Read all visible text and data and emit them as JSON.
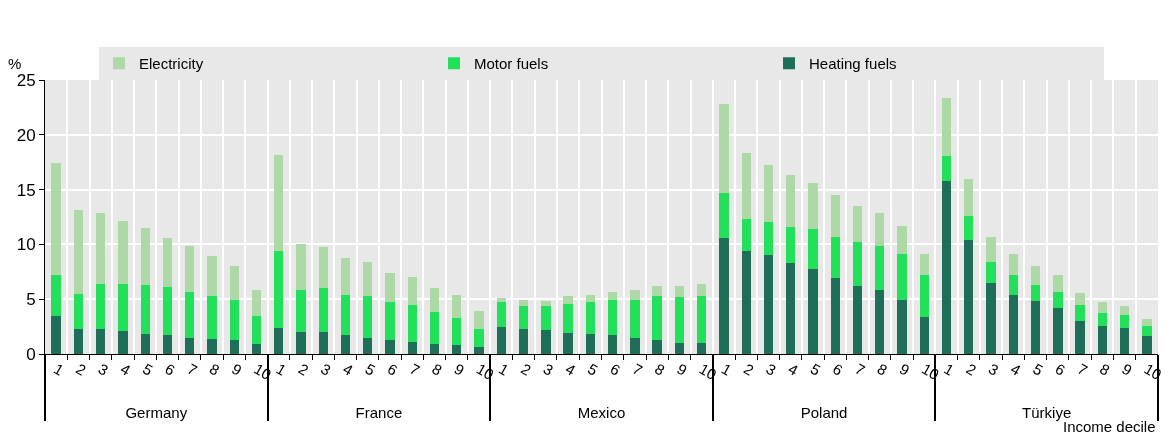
{
  "chart_data": {
    "type": "bar",
    "stacked": true,
    "xlabel": "Income decile",
    "ylabel": "%",
    "categories": [
      "1",
      "2",
      "3",
      "4",
      "5",
      "6",
      "7",
      "8",
      "9",
      "10",
      "1",
      "2",
      "3",
      "4",
      "5",
      "6",
      "7",
      "8",
      "9",
      "10",
      "1",
      "2",
      "3",
      "4",
      "5",
      "6",
      "7",
      "8",
      "9",
      "10",
      "1",
      "2",
      "3",
      "4",
      "5",
      "6",
      "7",
      "8",
      "9",
      "10",
      "1",
      "2",
      "3",
      "4",
      "5",
      "6",
      "7",
      "8",
      "9",
      "10"
    ],
    "annotations": [
      "Germany",
      "France",
      "Mexico",
      "Poland",
      "Türkiye"
    ],
    "series": [
      {
        "name": "Heating fuels",
        "color": "#1f6e5a",
        "values": [
          3.5,
          2.3,
          2.3,
          2.1,
          1.8,
          1.7,
          1.5,
          1.4,
          1.3,
          0.9,
          2.4,
          2.0,
          2.0,
          1.7,
          1.5,
          1.3,
          1.1,
          0.9,
          0.8,
          0.6,
          2.5,
          2.3,
          2.2,
          1.9,
          1.8,
          1.7,
          1.5,
          1.3,
          1.0,
          1.0,
          10.6,
          9.4,
          9.0,
          8.3,
          7.8,
          6.9,
          6.2,
          5.8,
          4.9,
          3.4,
          15.8,
          10.4,
          6.5,
          5.4,
          4.8,
          4.2,
          3.0,
          2.6,
          2.4,
          1.6
        ]
      },
      {
        "name": "Motor fuels",
        "color": "#22e05a",
        "values": [
          3.7,
          3.2,
          4.1,
          4.3,
          4.5,
          4.4,
          4.2,
          3.9,
          3.6,
          2.6,
          7.0,
          3.8,
          4.0,
          3.7,
          3.8,
          3.4,
          3.4,
          2.9,
          2.5,
          1.7,
          2.2,
          2.1,
          2.2,
          2.7,
          2.9,
          3.2,
          3.4,
          4.0,
          4.2,
          4.3,
          4.1,
          2.9,
          3.0,
          3.3,
          3.6,
          3.8,
          4.0,
          4.1,
          4.2,
          3.8,
          2.3,
          2.2,
          1.9,
          1.8,
          1.5,
          1.5,
          1.5,
          1.1,
          1.2,
          1.0
        ]
      },
      {
        "name": "Electricity",
        "color": "#acd9a6",
        "values": [
          10.2,
          7.6,
          6.5,
          5.7,
          5.2,
          4.5,
          4.2,
          3.6,
          3.1,
          2.3,
          8.8,
          4.2,
          3.8,
          3.4,
          3.1,
          2.7,
          2.5,
          2.2,
          2.1,
          1.6,
          0.4,
          0.5,
          0.4,
          0.7,
          0.7,
          0.8,
          0.9,
          0.9,
          1.0,
          1.1,
          8.1,
          6.0,
          5.2,
          4.7,
          4.2,
          3.8,
          3.3,
          3.0,
          2.6,
          1.9,
          5.3,
          3.4,
          2.3,
          1.9,
          1.7,
          1.5,
          1.1,
          1.0,
          0.8,
          0.6
        ]
      }
    ],
    "ylim": [
      0,
      25
    ],
    "yticks": [
      0,
      5,
      10,
      15,
      20,
      25
    ],
    "grid": true,
    "legend": "top"
  }
}
